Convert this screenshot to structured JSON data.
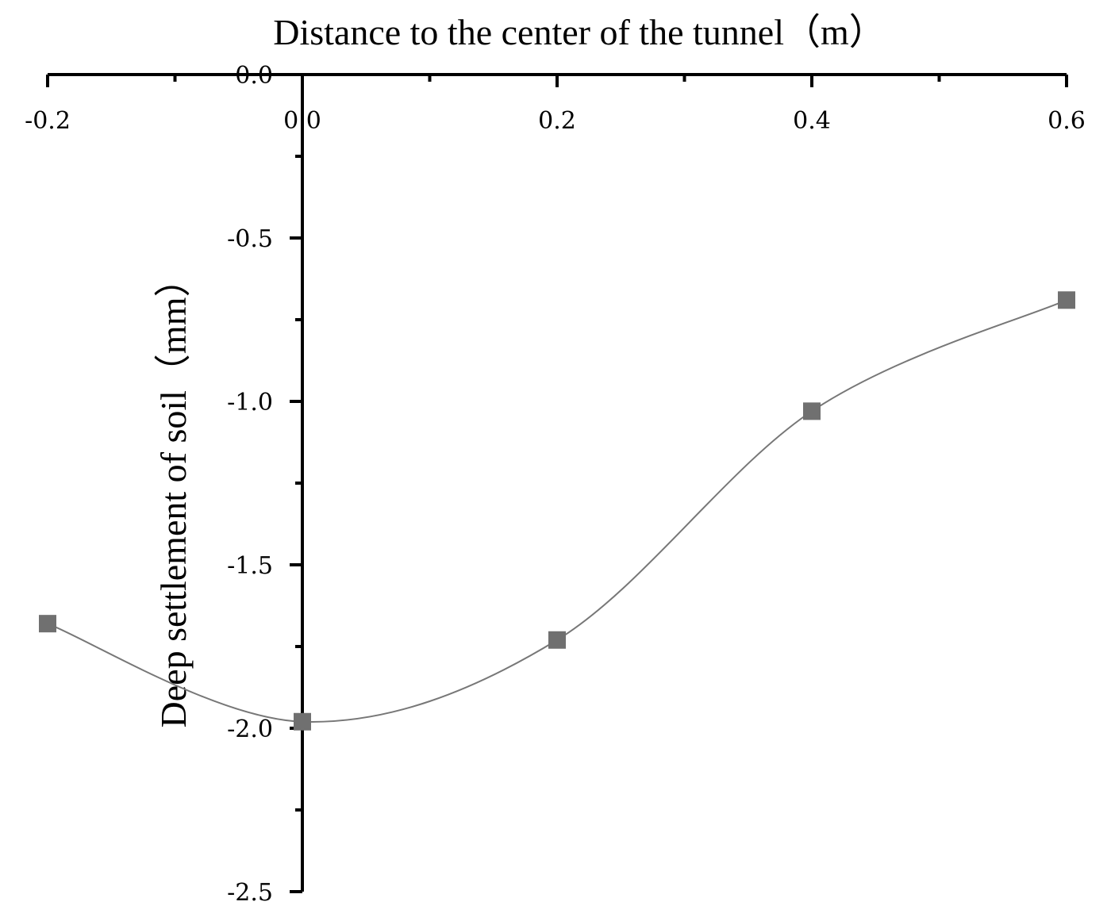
{
  "chart_data": {
    "type": "line",
    "xlabel": "Distance to the center of the tunnel（m）",
    "ylabel": "Deep settlement of soil（mm）",
    "x_ticks": [
      "-0.2",
      "0.0",
      "0.2",
      "0.4",
      "0.6"
    ],
    "y_ticks": [
      "0.0",
      "-0.5",
      "-1.0",
      "-1.5",
      "-2.0",
      "-2.5"
    ],
    "xlim": [
      -0.2,
      0.6
    ],
    "ylim": [
      -2.5,
      0.0
    ],
    "x_axis_position": "top",
    "y_axis_crosses_at_x": 0.0,
    "grid": false,
    "smooth": true,
    "marker": "square",
    "color": "#707070",
    "series": [
      {
        "x": [
          -0.2,
          0.0,
          0.2,
          0.4,
          0.6
        ],
        "values": [
          -1.68,
          -1.98,
          -1.73,
          -1.03,
          -0.69
        ]
      }
    ]
  }
}
